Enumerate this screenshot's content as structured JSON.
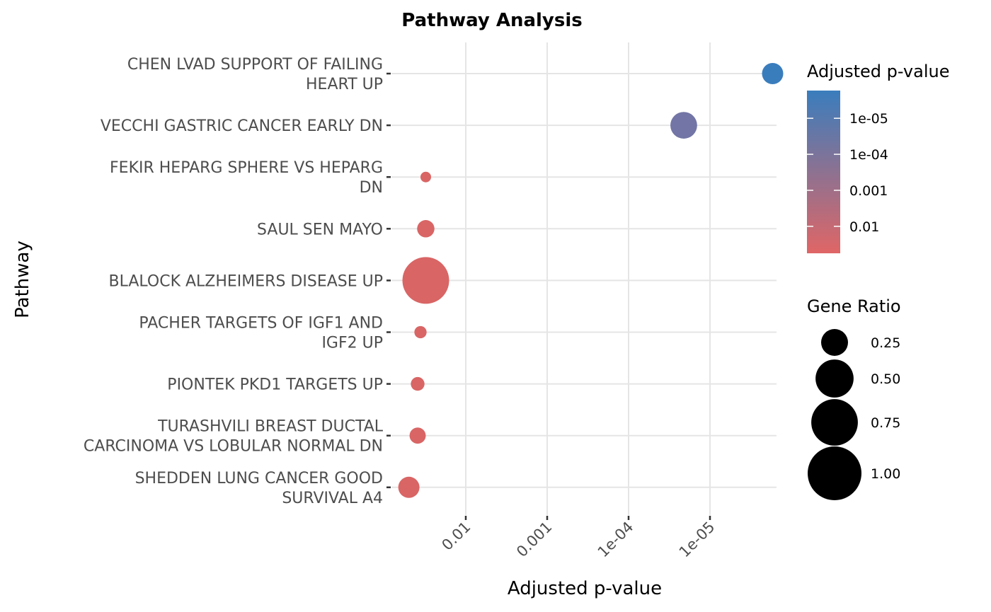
{
  "chart_data": {
    "type": "scatter",
    "title": "Pathway Analysis",
    "xlabel": "Adjusted p-value",
    "ylabel": "Pathway",
    "x_scale": "log10, reversed",
    "x_ticks": [
      {
        "value": 0.01,
        "label": "0.01"
      },
      {
        "value": 0.001,
        "label": "0.001"
      },
      {
        "value": 0.0001,
        "label": "1e-04"
      },
      {
        "value": 1e-05,
        "label": "1e-05"
      }
    ],
    "grid": true,
    "categories": [
      "CHEN LVAD SUPPORT OF FAILING HEART UP",
      "VECCHI GASTRIC CANCER EARLY DN",
      "FEKIR HEPARG SPHERE VS HEPARG DN",
      "SAUL SEN MAYO",
      "BLALOCK ALZHEIMERS DISEASE UP",
      "PACHER TARGETS OF IGF1 AND IGF2 UP",
      "PIONTEK PKD1 TARGETS UP",
      "TURASHVILI BREAST DUCTAL CARCINOMA VS LOBULAR NORMAL DN",
      "SHEDDEN LUNG CANCER GOOD SURVIVAL A4"
    ],
    "category_label_lines": [
      [
        "CHEN LVAD SUPPORT OF FAILING",
        "HEART UP"
      ],
      [
        "VECCHI GASTRIC CANCER EARLY DN"
      ],
      [
        "FEKIR HEPARG SPHERE VS HEPARG",
        "DN"
      ],
      [
        "SAUL SEN MAYO"
      ],
      [
        "BLALOCK ALZHEIMERS DISEASE UP"
      ],
      [
        "PACHER TARGETS OF IGF1 AND",
        "IGF2 UP"
      ],
      [
        "PIONTEK PKD1 TARGETS UP"
      ],
      [
        "TURASHVILI BREAST DUCTAL",
        "CARCINOMA VS LOBULAR NORMAL DN"
      ],
      [
        "SHEDDEN LUNG CANCER GOOD",
        "SURVIVAL A4"
      ]
    ],
    "points": [
      {
        "pathway": "CHEN LVAD SUPPORT OF FAILING HEART UP",
        "p_adjust": 1.7e-06,
        "gene_ratio": 0.12,
        "color": "#3a7dbd"
      },
      {
        "pathway": "VECCHI GASTRIC CANCER EARLY DN",
        "p_adjust": 2.1e-05,
        "gene_ratio": 0.19,
        "color": "#7275a5"
      },
      {
        "pathway": "FEKIR HEPARG SPHERE VS HEPARG DN",
        "p_adjust": 0.031,
        "gene_ratio": 0.03,
        "color": "#d96565"
      },
      {
        "pathway": "SAUL SEN MAYO",
        "p_adjust": 0.031,
        "gene_ratio": 0.08,
        "color": "#d96565"
      },
      {
        "pathway": "BLALOCK ALZHEIMERS DISEASE UP",
        "p_adjust": 0.031,
        "gene_ratio": 0.58,
        "color": "#d96565"
      },
      {
        "pathway": "PACHER TARGETS OF IGF1 AND IGF2 UP",
        "p_adjust": 0.036,
        "gene_ratio": 0.04,
        "color": "#d96565"
      },
      {
        "pathway": "PIONTEK PKD1 TARGETS UP",
        "p_adjust": 0.039,
        "gene_ratio": 0.05,
        "color": "#d96565"
      },
      {
        "pathway": "TURASHVILI BREAST DUCTAL CARCINOMA VS LOBULAR NORMAL DN",
        "p_adjust": 0.039,
        "gene_ratio": 0.07,
        "color": "#d96565"
      },
      {
        "pathway": "SHEDDEN LUNG CANCER GOOD SURVIVAL A4",
        "p_adjust": 0.05,
        "gene_ratio": 0.12,
        "color": "#d96565"
      }
    ],
    "legend_color": {
      "title": "Adjusted p-value",
      "scale": "log10, reversed",
      "low_color": "#e06666",
      "high_color": "#3a7dbd",
      "range": [
        0.056,
        1.7e-06
      ],
      "ticks": [
        {
          "value": 1e-05,
          "label": "1e-05"
        },
        {
          "value": 0.0001,
          "label": "1e-04"
        },
        {
          "value": 0.001,
          "label": "0.001"
        },
        {
          "value": 0.01,
          "label": "0.01"
        }
      ]
    },
    "legend_size": {
      "title": "Gene Ratio",
      "entries": [
        {
          "value": 0.25,
          "label": "0.25"
        },
        {
          "value": 0.5,
          "label": "0.50"
        },
        {
          "value": 0.75,
          "label": "0.75"
        },
        {
          "value": 1.0,
          "label": "1.00"
        }
      ],
      "color": "#000000"
    },
    "legend_placement": "right"
  }
}
